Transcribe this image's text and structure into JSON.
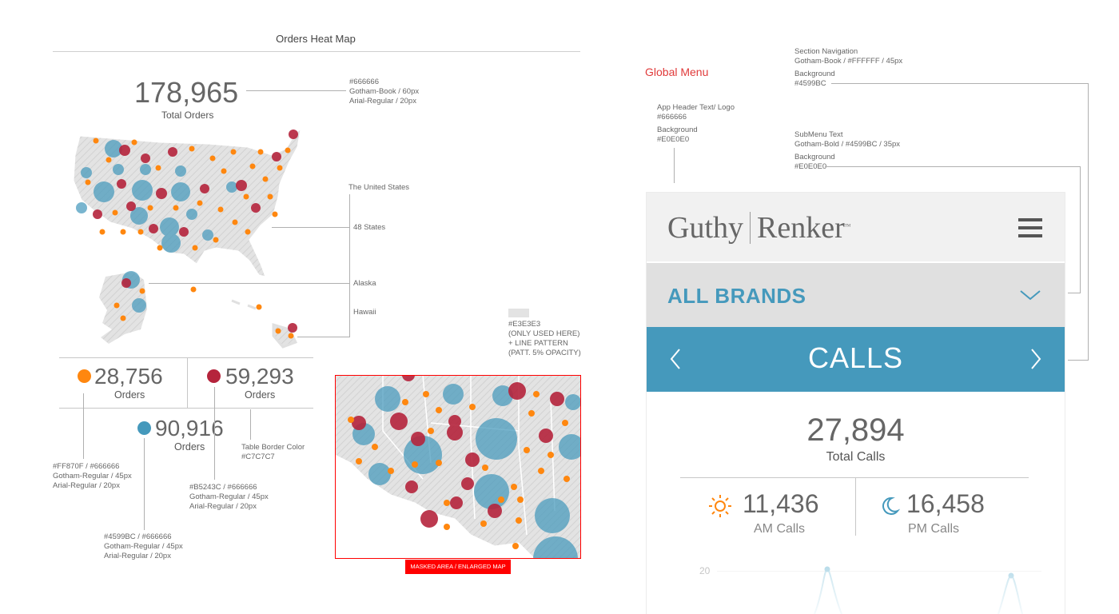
{
  "heatmap": {
    "title": "Orders Heat Map",
    "total_value": "178,965",
    "total_label": "Total Orders",
    "ann_total": [
      "#666666",
      "Gotham-Book / 60px",
      "Arial-Regular / 20px"
    ],
    "ann_us": "The United States",
    "ann_states": "48 States",
    "ann_alaska": "Alaska",
    "ann_hawaii": "Hawaii",
    "ann_pattern": [
      "#E3E3E3",
      "(ONLY USED HERE)",
      "+ LINE PATTERN",
      "(PATT. 5% OPACITY)"
    ],
    "stat_orange": {
      "value": "28,756",
      "label": "Orders",
      "color": "#FF870F"
    },
    "stat_red": {
      "value": "59,293",
      "label": "Orders",
      "color": "#B5243C"
    },
    "stat_blue": {
      "value": "90,916",
      "label": "Orders",
      "color": "#4599BC"
    },
    "ann_border": [
      "Table Border Color",
      "#C7C7C7"
    ],
    "ann_orange": [
      "#FF870F / #666666",
      "Gotham-Regular / 45px",
      "Arial-Regular / 20px"
    ],
    "ann_red": [
      "#B5243C / #666666",
      "Gotham-Regular / 45px",
      "Arial-Regular / 20px"
    ],
    "ann_blue": [
      "#4599BC / #666666",
      "Gotham-Regular / 45px",
      "Arial-Regular / 20px"
    ],
    "masked_label": "MASKED AREA / ENLARGED MAP",
    "map_fill": "#E3E3E3"
  },
  "spec": {
    "global_menu": "Global Menu",
    "ann_section_nav": [
      "Section Navigation",
      "Gotham-Book  /  #FFFFFF  /  45px",
      "Background",
      "#4599BC"
    ],
    "ann_app_header": [
      "App Header Text/ Logo",
      "#666666",
      "Background",
      "#E0E0E0"
    ],
    "ann_submenu": [
      "SubMenu Text",
      "Gotham-Bold  /  #4599BC  /  35px",
      "Background",
      "#E0E0E0"
    ]
  },
  "phone": {
    "logo_left": "Guthy",
    "logo_right": "Renker",
    "logo_tm": "TM",
    "brands_label": "ALL BRANDS",
    "section_title": "CALLS",
    "total_value": "27,894",
    "total_label": "Total Calls",
    "am_value": "11,436",
    "am_label": "AM Calls",
    "pm_value": "16,458",
    "pm_label": "PM Calls",
    "chart_tick": "20",
    "icons": [
      "hamburger-menu-icon",
      "chevron-down-icon",
      "chevron-left-icon",
      "chevron-right-icon",
      "sun-icon",
      "moon-icon"
    ]
  }
}
